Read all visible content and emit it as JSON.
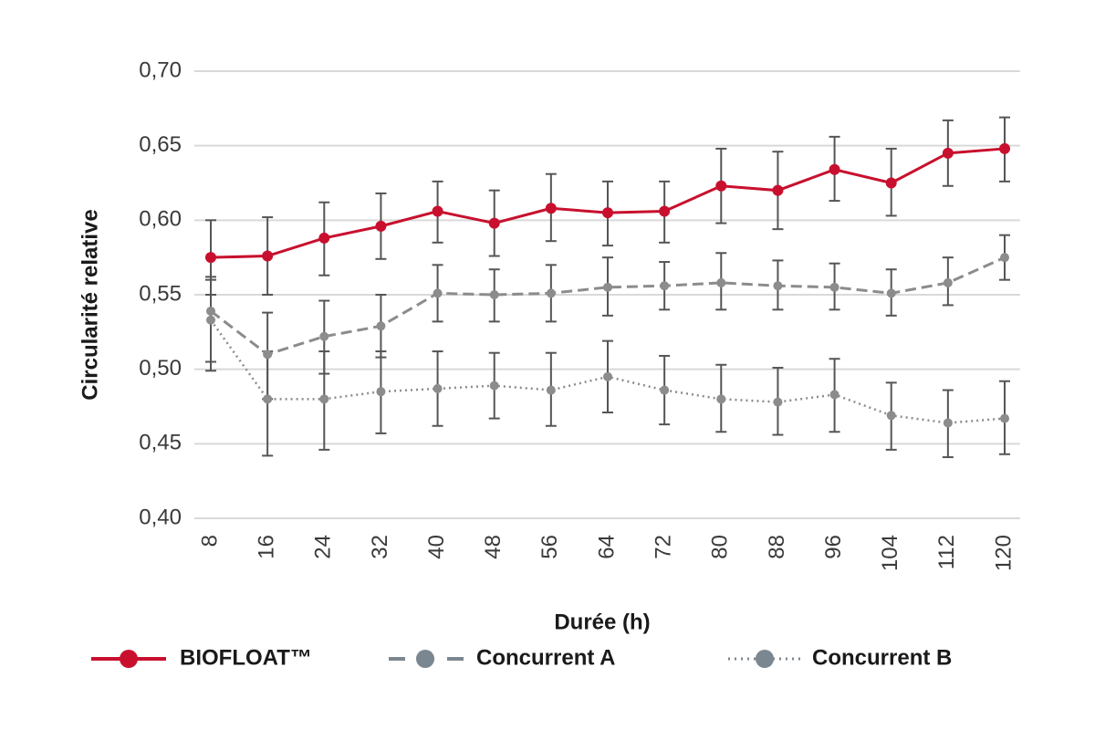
{
  "chart_data": {
    "type": "line",
    "xlabel": "Durée (h)",
    "ylabel": "Circularité relative",
    "ylim": [
      0.4,
      0.7
    ],
    "y_ticks": [
      "0,40",
      "0,45",
      "0,50",
      "0,55",
      "0,60",
      "0,65",
      "0,70"
    ],
    "y_tick_values": [
      0.4,
      0.45,
      0.5,
      0.55,
      0.6,
      0.65,
      0.7
    ],
    "categories": [
      "8",
      "16",
      "24",
      "32",
      "40",
      "48",
      "56",
      "64",
      "72",
      "80",
      "88",
      "96",
      "104",
      "112",
      "120"
    ],
    "grid": true,
    "legend_position": "bottom",
    "series": [
      {
        "name": "BIOFLOAT™",
        "color": "#c8102e",
        "style": "solid",
        "values": [
          0.575,
          0.576,
          0.588,
          0.596,
          0.606,
          0.598,
          0.608,
          0.605,
          0.606,
          0.623,
          0.62,
          0.634,
          0.625,
          0.645,
          0.648
        ],
        "error_low": [
          0.55,
          0.55,
          0.563,
          0.574,
          0.585,
          0.576,
          0.586,
          0.583,
          0.585,
          0.598,
          0.594,
          0.613,
          0.603,
          0.623,
          0.626
        ],
        "error_high": [
          0.6,
          0.602,
          0.612,
          0.618,
          0.626,
          0.62,
          0.631,
          0.626,
          0.626,
          0.648,
          0.646,
          0.656,
          0.648,
          0.667,
          0.669
        ]
      },
      {
        "name": "Concurrent A",
        "color": "#8c8c8c",
        "style": "dashed",
        "values": [
          0.539,
          0.51,
          0.522,
          0.529,
          0.551,
          0.55,
          0.551,
          0.555,
          0.556,
          0.558,
          0.556,
          0.555,
          0.551,
          0.558,
          0.575
        ],
        "error_low": [
          0.505,
          0.48,
          0.497,
          0.508,
          0.532,
          0.532,
          0.532,
          0.536,
          0.54,
          0.54,
          0.54,
          0.54,
          0.536,
          0.543,
          0.56
        ],
        "error_high": [
          0.56,
          0.538,
          0.546,
          0.55,
          0.57,
          0.567,
          0.57,
          0.575,
          0.572,
          0.578,
          0.573,
          0.571,
          0.567,
          0.575,
          0.59
        ]
      },
      {
        "name": "Concurrent B",
        "color": "#8c8c8c",
        "style": "dotted",
        "values": [
          0.533,
          0.48,
          0.48,
          0.485,
          0.487,
          0.489,
          0.486,
          0.495,
          0.486,
          0.48,
          0.478,
          0.483,
          0.469,
          0.464,
          0.467
        ],
        "error_low": [
          0.499,
          0.442,
          0.446,
          0.457,
          0.462,
          0.467,
          0.462,
          0.471,
          0.463,
          0.458,
          0.456,
          0.458,
          0.446,
          0.441,
          0.443
        ],
        "error_high": [
          0.562,
          0.512,
          0.512,
          0.512,
          0.512,
          0.511,
          0.511,
          0.519,
          0.509,
          0.503,
          0.501,
          0.507,
          0.491,
          0.486,
          0.492
        ]
      }
    ]
  }
}
